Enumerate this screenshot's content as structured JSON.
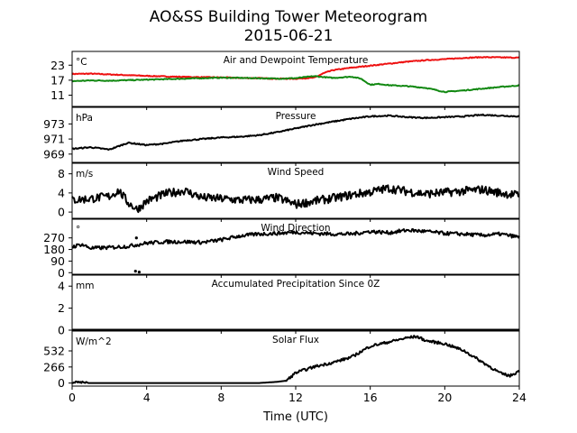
{
  "chart_data": {
    "type": "line",
    "title": "AO&SS Building Tower Meteorogram",
    "subtitle": "2015-06-21",
    "xlabel": "Time (UTC)",
    "xlim": [
      0,
      24
    ],
    "x_ticks": [
      0,
      4,
      8,
      12,
      16,
      20,
      24
    ],
    "x_tick_labels": [
      "0",
      "4",
      "8",
      "12",
      "16",
      "20",
      "24"
    ],
    "grid": false,
    "panels": [
      {
        "id": "temp",
        "title": "Air and Dewpoint Temperature",
        "unit": "°C",
        "ylim": [
          6.5,
          28.5
        ],
        "y_ticks": [
          11,
          17,
          23
        ],
        "y_tick_labels": [
          "11",
          "17",
          "23"
        ],
        "series": [
          {
            "color": "#ee1111",
            "x": [
              0,
              1,
              2,
              3,
              4,
              5,
              6,
              7,
              8,
              9,
              10,
              11,
              12,
              13,
              13.5,
              14,
              15,
              16,
              17,
              18,
              19,
              20,
              21,
              22,
              23,
              24
            ],
            "y": [
              19.5,
              19.6,
              19.3,
              19.0,
              18.7,
              18.5,
              18.3,
              18.2,
              18.1,
              17.9,
              17.8,
              17.6,
              17.6,
              18.0,
              19.8,
              21.0,
              22.0,
              22.8,
              23.6,
              24.4,
              25.0,
              25.4,
              25.9,
              26.2,
              26.1,
              26.0
            ]
          },
          {
            "color": "#118811",
            "x": [
              0,
              1,
              2,
              3,
              4,
              5,
              6,
              7,
              8,
              9,
              10,
              11,
              12,
              13,
              14,
              15,
              15.5,
              16,
              16.5,
              17,
              18,
              19,
              20,
              20.5,
              21,
              22,
              23,
              24
            ],
            "y": [
              16.6,
              16.9,
              16.8,
              17.0,
              17.2,
              17.4,
              17.6,
              17.8,
              18.0,
              17.9,
              17.8,
              17.6,
              17.8,
              18.6,
              17.9,
              18.4,
              17.6,
              15.2,
              15.5,
              15.0,
              14.6,
              13.9,
              12.3,
              12.6,
              12.9,
              13.6,
              14.3,
              14.9
            ]
          }
        ]
      },
      {
        "id": "pressure",
        "title": "Pressure",
        "unit": "hPa",
        "ylim": [
          967.9,
          975.2
        ],
        "y_ticks": [
          969,
          971,
          973
        ],
        "y_tick_labels": [
          "969",
          "971",
          "973"
        ],
        "series": [
          {
            "color": "#000000",
            "x": [
              0,
              1,
              2,
              3,
              4,
              5,
              6,
              7,
              8,
              9,
              10,
              11,
              12,
              13,
              14,
              15,
              16,
              17,
              18,
              19,
              20,
              21,
              22,
              23,
              24
            ],
            "y": [
              969.7,
              969.9,
              969.6,
              970.5,
              970.2,
              970.4,
              970.8,
              971.0,
              971.2,
              971.3,
              971.5,
              971.9,
              972.4,
              972.9,
              973.3,
              973.7,
              974.0,
              974.1,
              973.9,
              973.8,
              973.9,
              974.0,
              974.2,
              974.1,
              974.0
            ]
          }
        ]
      },
      {
        "id": "wind_speed",
        "title": "Wind Speed",
        "unit": "m/s",
        "ylim": [
          -1.3,
          10.2
        ],
        "y_ticks": [
          0,
          4,
          8
        ],
        "y_tick_labels": [
          "0",
          "4",
          "8"
        ],
        "series": [
          {
            "color": "#000000",
            "x": [
              0,
              1,
              2,
              2.5,
              3,
              3.5,
              4,
              5,
              6,
              7,
              8,
              9,
              10,
              11,
              12,
              13,
              14,
              15,
              16,
              17,
              18,
              19,
              20,
              21,
              22,
              23,
              24
            ],
            "y": [
              2.5,
              2.8,
              3.3,
              4.5,
              2.0,
              0.5,
              2.3,
              3.8,
              4.5,
              3.0,
              2.8,
              2.5,
              2.6,
              3.0,
              1.6,
              2.3,
              2.9,
              3.6,
              4.2,
              5.0,
              4.3,
              3.8,
              4.1,
              4.4,
              4.7,
              4.0,
              3.5
            ]
          }
        ]
      },
      {
        "id": "wind_dir",
        "title": "Wind Direction",
        "unit": "°",
        "ylim": [
          -12,
          415
        ],
        "y_ticks": [
          0,
          90,
          180,
          270
        ],
        "y_tick_labels": [
          "0",
          "90",
          "180",
          "270"
        ],
        "series": [
          {
            "color": "#000000",
            "x": [
              0,
              0.5,
              1,
              2,
              3,
              4,
              5,
              6,
              7,
              8,
              9,
              10,
              11,
              12,
              13,
              14,
              15,
              16,
              17,
              18,
              19,
              20,
              21,
              22,
              23,
              24
            ],
            "y": [
              200,
              220,
              190,
              195,
              205,
              230,
              240,
              240,
              235,
              255,
              285,
              300,
              305,
              315,
              305,
              300,
              300,
              320,
              310,
              330,
              320,
              305,
              300,
              290,
              300,
              275
            ],
            "outliers_x": [
              3.4,
              3.6,
              3.45
            ],
            "outliers_y": [
              12,
              5,
              270
            ]
          }
        ]
      },
      {
        "id": "precip",
        "title": "Accumulated Precipitation Since 0Z",
        "unit": "mm",
        "ylim": [
          0,
          5
        ],
        "y_ticks": [
          0,
          2,
          4
        ],
        "y_tick_labels": [
          "0",
          "2",
          "4"
        ],
        "series": [
          {
            "color": "#000000",
            "x": [
              0,
              24
            ],
            "y": [
              0,
              0
            ]
          }
        ]
      },
      {
        "id": "solar",
        "title": "Solar Flux",
        "unit": "W/m^2",
        "ylim": [
          -50,
          860
        ],
        "y_ticks": [
          0,
          266,
          532
        ],
        "y_tick_labels": [
          "0",
          "266",
          "532"
        ],
        "series": [
          {
            "color": "#000000",
            "x": [
              0,
              1,
              2,
              3,
              4,
              5,
              6,
              7,
              8,
              9,
              10,
              11,
              11.5,
              12,
              13,
              14,
              15,
              16,
              17,
              18,
              18.5,
              19,
              20,
              21,
              22,
              23,
              23.5,
              24
            ],
            "y": [
              10,
              0,
              0,
              0,
              0,
              0,
              0,
              0,
              0,
              0,
              0,
              20,
              40,
              170,
              270,
              340,
              430,
              610,
              680,
              750,
              770,
              700,
              650,
              540,
              350,
              160,
              120,
              200
            ]
          }
        ]
      }
    ]
  }
}
